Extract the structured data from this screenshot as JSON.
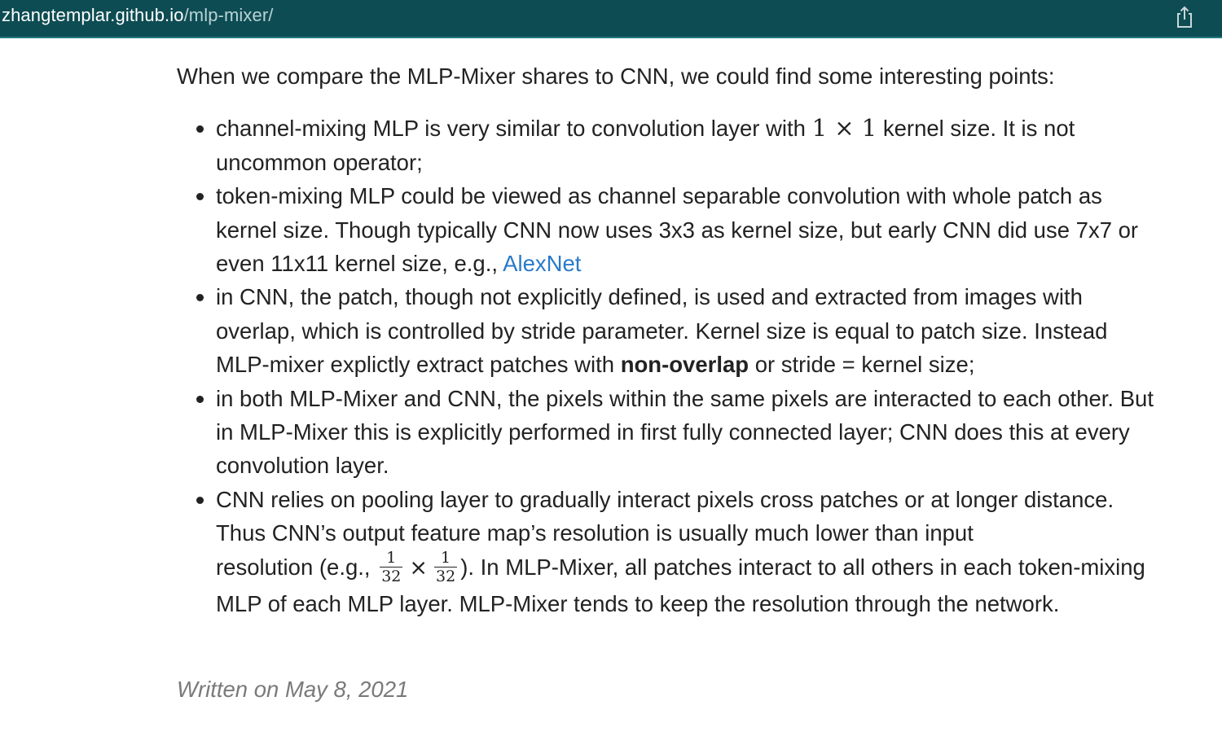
{
  "browser": {
    "url_host": "zhangtemplar.github.io",
    "url_path": "/mlp-mixer/",
    "share_icon": "share-icon"
  },
  "article": {
    "intro": "When we compare the MLP-Mixer shares to CNN, we could find some interesting points:",
    "points": [
      {
        "before": "channel-mixing MLP is very similar to convolution layer with ",
        "math": "1 × 1",
        "after": " kernel size. It is not uncommon operator;"
      },
      {
        "text": "token-mixing MLP could be viewed as channel separable convolution with whole patch as kernel size. Though typically CNN now uses 3x3 as kernel size, but early CNN did use 7x7 or even 11x11 kernel size, e.g., ",
        "link": "AlexNet"
      },
      {
        "before": "in CNN, the patch, though not explicitly defined, is used and extracted from images with overlap, which is controlled by stride parameter. Kernel size is equal to patch size. Instead MLP-mixer explictly extract patches with ",
        "bold": "non-overlap",
        "after": " or stride = kernel size;"
      },
      {
        "text": "in both MLP-Mixer and CNN, the pixels within the same pixels are interacted to each other. But in MLP-Mixer this is explicitly performed in first fully connected layer; CNN does this at every convolution layer."
      },
      {
        "line1": "CNN relies on pooling layer to gradually interact pixels cross patches or at longer distance. Thus CNN’s output feature map’s resolution is usually much lower than input",
        "line2_before": "resolution (e.g., ",
        "frac_num": "1",
        "frac_den": "32",
        "times": "×",
        "line2_after": "). In MLP-Mixer, all patches interact to all others in each",
        "rest": "token-mixing MLP of each MLP layer. MLP-Mixer tends to keep the resolution through the network."
      }
    ],
    "written_on": "Written on May 8, 2021"
  }
}
